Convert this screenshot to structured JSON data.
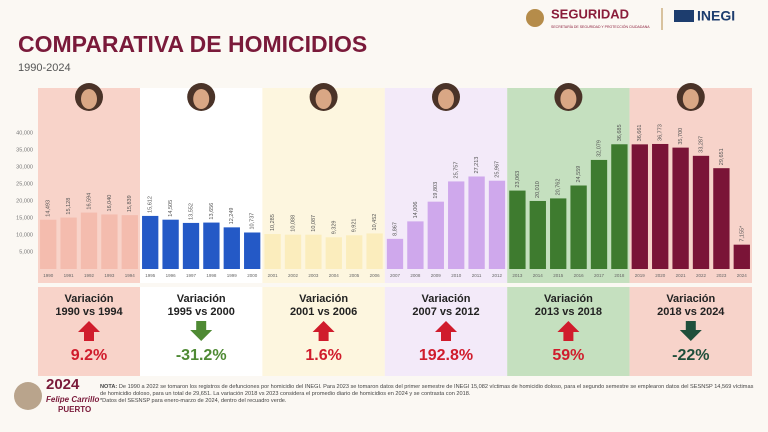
{
  "header": {
    "logo_main": "SEGURIDAD",
    "logo_sub": "SECRETARÍA DE SEGURIDAD Y PROTECCIÓN CIUDADANA",
    "logo_inegi": "INEGI"
  },
  "chart_data": {
    "type": "bar",
    "title": "COMPARATIVA DE HOMICIDIOS",
    "subtitle": "1990-2024",
    "ylim": [
      0,
      40000
    ],
    "yticks": [
      {
        "value": 5000,
        "label": "5,000"
      },
      {
        "value": 10000,
        "label": "10,000"
      },
      {
        "value": 15000,
        "label": "15,000"
      },
      {
        "value": 20000,
        "label": "20,000"
      },
      {
        "value": 25000,
        "label": "25,000"
      },
      {
        "value": 30000,
        "label": "30,000"
      },
      {
        "value": 35000,
        "label": "35,000"
      },
      {
        "value": 40000,
        "label": "40,000"
      }
    ],
    "periods": [
      {
        "categories": [
          "1990",
          "1991",
          "1992",
          "1993",
          "1994"
        ],
        "values": [
          14493,
          15128,
          16594,
          16040,
          15839
        ],
        "value_labels": [
          "14,493",
          "15,128",
          "16,594",
          "16,040",
          "15,839"
        ],
        "color": "#f4bcae",
        "background": "#f8d3c9",
        "variation": {
          "title": "Variación",
          "range": "1990 vs 1994",
          "change": 9.2,
          "change_label": "9.2%",
          "color": "#d01c2c"
        }
      },
      {
        "categories": [
          "1995",
          "1996",
          "1997",
          "1998",
          "1999",
          "2000"
        ],
        "values": [
          15612,
          14505,
          13552,
          13656,
          12249,
          10737
        ],
        "value_labels": [
          "15,612",
          "14,505",
          "13,552",
          "13,656",
          "12,249",
          "10,737"
        ],
        "color": "#2459c6",
        "background": "#ffffff",
        "variation": {
          "title": "Variación",
          "range": "1995 vs 2000",
          "change": -31.2,
          "change_label": "-31.2%",
          "color": "#4f8a34"
        }
      },
      {
        "categories": [
          "2001",
          "2002",
          "2003",
          "2004",
          "2005",
          "2006"
        ],
        "values": [
          10285,
          10088,
          10087,
          9329,
          9921,
          10452
        ],
        "value_labels": [
          "10,285",
          "10,088",
          "10,087",
          "9,329",
          "9,921",
          "10,452"
        ],
        "color": "#fbedbd",
        "background": "#fdf6df",
        "variation": {
          "title": "Variación",
          "range": "2001 vs 2006",
          "change": 1.6,
          "change_label": "1.6%",
          "color": "#d01c2c"
        }
      },
      {
        "categories": [
          "2007",
          "2008",
          "2009",
          "2010",
          "2011",
          "2012"
        ],
        "values": [
          8867,
          14006,
          19803,
          25757,
          27213,
          25967
        ],
        "value_labels": [
          "8,867",
          "14,006",
          "19,803",
          "25,757",
          "27,213",
          "25,967"
        ],
        "color": "#cfa8ec",
        "background": "#f3eaf9",
        "variation": {
          "title": "Variación",
          "range": "2007 vs 2012",
          "change": 192.8,
          "change_label": "192.8%",
          "color": "#d01c2c"
        }
      },
      {
        "categories": [
          "2013",
          "2014",
          "2015",
          "2016",
          "2017",
          "2018"
        ],
        "values": [
          23063,
          20010,
          20762,
          24559,
          32079,
          36685
        ],
        "value_labels": [
          "23,063",
          "20,010",
          "20,762",
          "24,559",
          "32,079",
          "36,685"
        ],
        "color": "#3e7b2f",
        "background": "#c5e0bf",
        "variation": {
          "title": "Variación",
          "range": "2013 vs 2018",
          "change": 59,
          "change_label": "59%",
          "color": "#d01c2c"
        }
      },
      {
        "categories": [
          "2019",
          "2020",
          "2021",
          "2022",
          "2023",
          "2024"
        ],
        "values": [
          36661,
          36773,
          35700,
          33287,
          29651,
          7155
        ],
        "value_labels": [
          "36,661",
          "36,773",
          "35,700",
          "33,287",
          "29,651",
          "7,155*"
        ],
        "color": "#7a1437",
        "background": "#f7d3ca",
        "variation": {
          "title": "Variación",
          "range": "2018 vs 2024",
          "change": -22,
          "change_label": "-22%",
          "color": "#1f4f3b"
        }
      }
    ]
  },
  "footer": {
    "logo_year": "2024",
    "logo_name": "Felipe Carrillo",
    "logo_place": "PUERTO",
    "note_label": "NOTA:",
    "note": "De 1990 a 2022 se tomaron los registros de defunciones por homicidio del INEGI. Para 2023 se tomaron datos del primer semestre de INEGI 15,082 víctimas de homicidio doloso, para el segundo semestre se emplearon datos del SESNSP 14,569 víctimas de homicidio doloso, para un total de 29,651. La variación 2018 vs 2023 considera el promedio diario de homicidios en 2024 y se contrasta con 2018.",
    "footnote": "*Datos del SESNSP para enero-marzo de 2024, dentro del recuadro verde."
  }
}
